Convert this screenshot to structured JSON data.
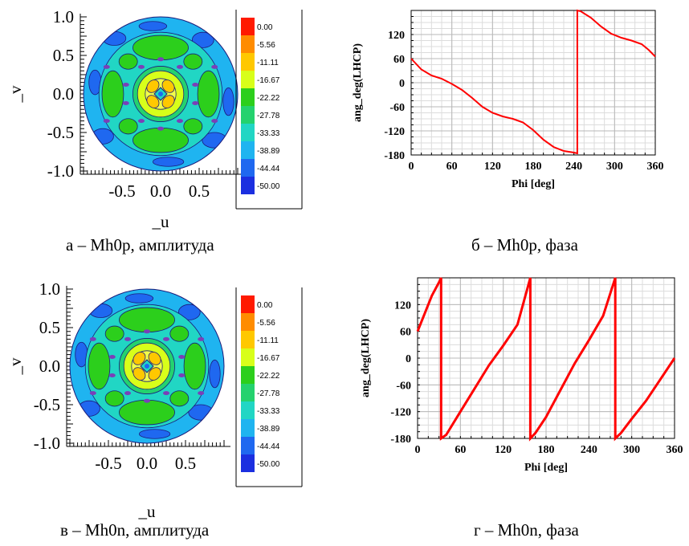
{
  "chart_data": [
    {
      "id": "a",
      "type": "heatmap",
      "xlabel": "_u",
      "ylabel": "_v",
      "xticks": [
        "-0.5",
        "0.0",
        "0.5"
      ],
      "yticks": [
        "1.0",
        "0.5",
        "0.0",
        "-0.5",
        "-1.0"
      ],
      "xlim": [
        -1.0,
        1.0
      ],
      "ylim": [
        -1.0,
        1.0
      ],
      "legend_levels": [
        "0.00",
        "-5.56",
        "-11.11",
        "-16.67",
        "-22.22",
        "-27.78",
        "-33.33",
        "-38.89",
        "-44.44",
        "-50.00"
      ],
      "legend_colors": [
        "#ff1a00",
        "#ff8c00",
        "#ffc800",
        "#d8ff1a",
        "#2ccf1c",
        "#24d26e",
        "#21d6c4",
        "#1fb4f0",
        "#1f68f0",
        "#1b2fe0"
      ],
      "caption": "а – Mh0p, амплитуда"
    },
    {
      "id": "b",
      "type": "line",
      "xlabel": "Phi [deg]",
      "ylabel": "ang_deg(LHCP)",
      "xticks": [
        "0",
        "60",
        "120",
        "180",
        "240",
        "300",
        "360"
      ],
      "yticks": [
        "120",
        "60",
        "0",
        "-60",
        "-120",
        "-180"
      ],
      "xlim": [
        0,
        360
      ],
      "ylim": [
        -180,
        180
      ],
      "series": [
        {
          "color": "#ff0000",
          "x": [
            0,
            15,
            30,
            45,
            60,
            75,
            90,
            105,
            120,
            135,
            150,
            165,
            180,
            195,
            210,
            225,
            240,
            245,
            245,
            250,
            265,
            280,
            295,
            310,
            325,
            340,
            350,
            360
          ],
          "y": [
            60,
            33,
            18,
            10,
            -3,
            -18,
            -38,
            -60,
            -75,
            -84,
            -90,
            -99,
            -118,
            -142,
            -160,
            -170,
            -174,
            -176,
            180,
            178,
            162,
            140,
            122,
            112,
            105,
            96,
            82,
            65
          ]
        }
      ],
      "caption": "б – Mh0p, фаза"
    },
    {
      "id": "v",
      "type": "heatmap",
      "xlabel": "_u",
      "ylabel": "_v",
      "xticks": [
        "-0.5",
        "0.0",
        "0.5"
      ],
      "yticks": [
        "1.0",
        "0.5",
        "0.0",
        "-0.5",
        "-1.0"
      ],
      "xlim": [
        -1.0,
        1.0
      ],
      "ylim": [
        -1.0,
        1.0
      ],
      "legend_levels": [
        "0.00",
        "-5.56",
        "-11.11",
        "-16.67",
        "-22.22",
        "-27.78",
        "-33.33",
        "-38.89",
        "-44.44",
        "-50.00"
      ],
      "legend_colors": [
        "#ff1a00",
        "#ff8c00",
        "#ffc800",
        "#d8ff1a",
        "#2ccf1c",
        "#24d26e",
        "#21d6c4",
        "#1fb4f0",
        "#1f68f0",
        "#1b2fe0"
      ],
      "caption": "в – Mh0n, амплитуда"
    },
    {
      "id": "g",
      "type": "line",
      "xlabel": "Phi [deg]",
      "ylabel": "ang_deg(LHCP)",
      "xticks": [
        "0",
        "60",
        "120",
        "180",
        "240",
        "300",
        "360"
      ],
      "yticks": [
        "120",
        "60",
        "0",
        "-60",
        "-120",
        "-180"
      ],
      "xlim": [
        0,
        360
      ],
      "ylim": [
        -180,
        180
      ],
      "series": [
        {
          "color": "#ff0000",
          "x": [
            0,
            10,
            20,
            30,
            33,
            33,
            40,
            60,
            80,
            100,
            120,
            140,
            158,
            158,
            165,
            180,
            200,
            220,
            240,
            260,
            277,
            277,
            285,
            300,
            320,
            340,
            360
          ],
          "y": [
            60,
            100,
            140,
            170,
            180,
            -180,
            -172,
            -120,
            -68,
            -16,
            28,
            75,
            180,
            -180,
            -168,
            -132,
            -72,
            -12,
            40,
            95,
            180,
            -180,
            -168,
            -136,
            -96,
            -48,
            0
          ]
        }
      ],
      "caption": "г – Mh0n, фаза"
    }
  ]
}
